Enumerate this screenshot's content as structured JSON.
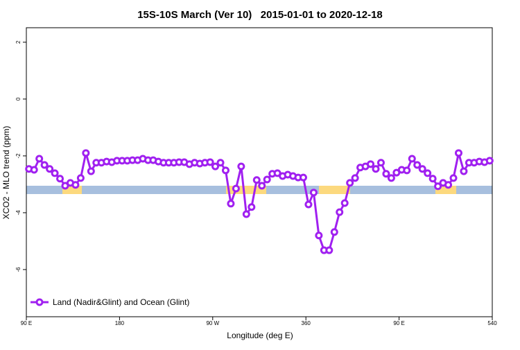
{
  "chart_data": {
    "type": "line",
    "title": "15S-10S March (Ver 10)   2015-01-01 to 2020-12-18",
    "x_label": "Longitude (deg E)",
    "y_label": "XCO2 - MLO trend (ppm)",
    "x": [
      92.5,
      97.5,
      102.5,
      107.5,
      112.5,
      117.5,
      122.5,
      127.5,
      132.5,
      137.5,
      142.5,
      147.5,
      152.5,
      157.5,
      162.5,
      167.5,
      172.5,
      177.5,
      182.5,
      187.5,
      192.5,
      197.5,
      202.5,
      207.5,
      212.5,
      217.5,
      222.5,
      227.5,
      232.5,
      237.5,
      242.5,
      247.5,
      252.5,
      257.5,
      262.5,
      267.5,
      272.5,
      277.5,
      282.5,
      287.5,
      292.5,
      297.5,
      302.5,
      307.5,
      312.5,
      317.5,
      322.5,
      327.5,
      332.5,
      337.5,
      342.5,
      347.5,
      352.5,
      357.5,
      362.5,
      367.5,
      372.5,
      377.5,
      382.5,
      387.5,
      392.5,
      397.5,
      402.5,
      407.5,
      412.5,
      417.5,
      422.5,
      427.5,
      432.5,
      437.5,
      442.5,
      447.5,
      452.5,
      457.5,
      462.5,
      467.5,
      472.5,
      477.5,
      482.5,
      487.5,
      492.5,
      497.5,
      502.5,
      507.5,
      512.5,
      517.5,
      522.5,
      527.5,
      532.5,
      537.5
    ],
    "series": [
      {
        "name": "Land (Nadir&Glint) and Ocean (Glint)",
        "color": "#a020f0",
        "values": [
          -2.46,
          -2.49,
          -2.1,
          -2.32,
          -2.46,
          -2.61,
          -2.8,
          -3.05,
          -2.95,
          -3.02,
          -2.78,
          -1.9,
          -2.54,
          -2.24,
          -2.24,
          -2.2,
          -2.22,
          -2.17,
          -2.17,
          -2.17,
          -2.15,
          -2.15,
          -2.1,
          -2.15,
          -2.15,
          -2.2,
          -2.24,
          -2.24,
          -2.24,
          -2.22,
          -2.22,
          -2.29,
          -2.24,
          -2.27,
          -2.24,
          -2.22,
          -2.37,
          -2.24,
          -2.51,
          -3.68,
          -3.15,
          -2.37,
          -4.05,
          -3.8,
          -2.85,
          -3.05,
          -2.83,
          -2.63,
          -2.61,
          -2.71,
          -2.66,
          -2.71,
          -2.76,
          -2.76,
          -3.71,
          -3.29,
          -4.8,
          -5.32,
          -5.32,
          -4.68,
          -3.98,
          -3.66,
          -2.95,
          -2.78,
          -2.41,
          -2.37,
          -2.29,
          -2.46,
          -2.24,
          -2.63,
          -2.78,
          -2.59,
          -2.49,
          -2.51,
          -2.1,
          -2.32,
          -2.46,
          -2.61,
          -2.8,
          -3.07,
          -2.95,
          -3.02,
          -2.78,
          -1.9,
          -2.54,
          -2.24,
          -2.24,
          -2.2,
          -2.22,
          -2.17
        ]
      }
    ],
    "xlim": [
      90,
      540
    ],
    "xticks": [
      {
        "value": 90,
        "label": "90 E"
      },
      180,
      {
        "value": 270,
        "label": "90 W"
      },
      360,
      {
        "value": 450,
        "label": "90 E"
      },
      540
    ],
    "ylim": [
      -7.66,
      2.51
    ],
    "yticks": [
      2,
      0,
      -2,
      -4,
      -6
    ],
    "legend": "bottom-left"
  }
}
